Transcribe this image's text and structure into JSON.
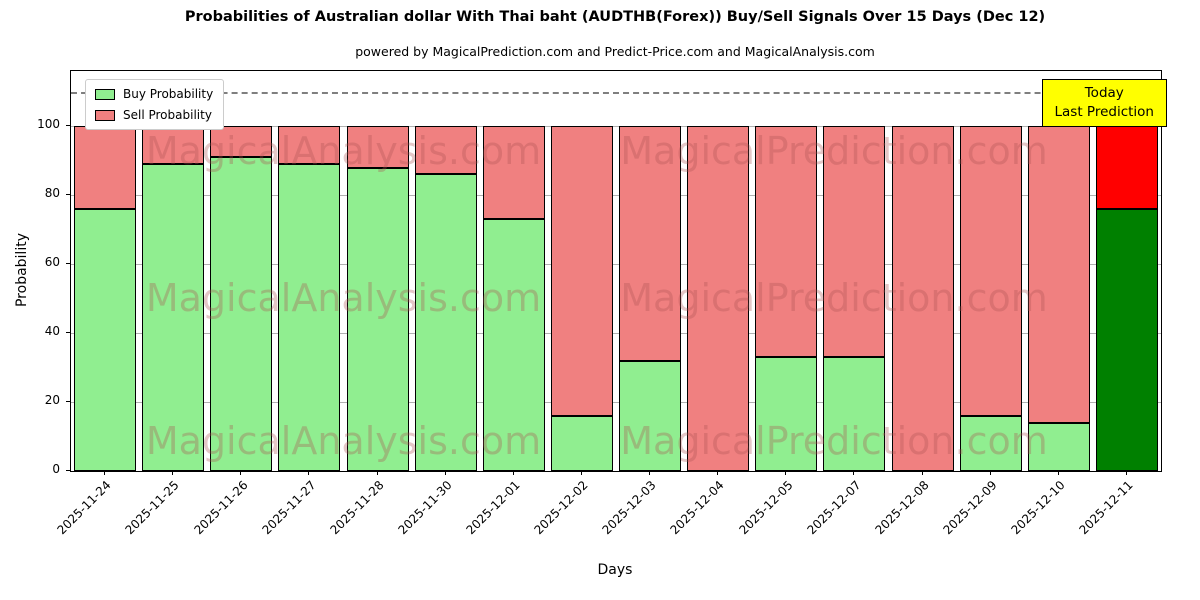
{
  "chart_data": {
    "type": "bar",
    "stacked": true,
    "title": "Probabilities of Australian dollar With Thai baht (AUDTHB(Forex)) Buy/Sell Signals Over 15 Days (Dec 12)",
    "subtitle": "powered by MagicalPrediction.com and Predict-Price.com and MagicalAnalysis.com",
    "xlabel": "Days",
    "ylabel": "Probability",
    "ylim": [
      0,
      116
    ],
    "yticks": [
      0,
      20,
      40,
      60,
      80,
      100
    ],
    "dashed_line_y": 110,
    "grid": true,
    "legend_position": "upper left",
    "categories": [
      "2025-11-24",
      "2025-11-25",
      "2025-11-26",
      "2025-11-27",
      "2025-11-28",
      "2025-11-30",
      "2025-12-01",
      "2025-12-02",
      "2025-12-03",
      "2025-12-04",
      "2025-12-05",
      "2025-12-07",
      "2025-12-08",
      "2025-12-09",
      "2025-12-10",
      "2025-12-11"
    ],
    "series": [
      {
        "name": "Buy Probability",
        "color": "#90ee90",
        "values": [
          76,
          89,
          91,
          89,
          88,
          86,
          73,
          16,
          32,
          0,
          33,
          33,
          0,
          16,
          14,
          76
        ]
      },
      {
        "name": "Sell Probability",
        "color": "#f08080",
        "values": [
          24,
          11,
          9,
          11,
          12,
          14,
          27,
          84,
          68,
          100,
          67,
          67,
          100,
          84,
          86,
          24
        ]
      }
    ],
    "today_index": 15,
    "today_colors": {
      "buy": "#008000",
      "sell": "#ff0000"
    }
  },
  "legend": {
    "items": [
      {
        "label": "Buy Probability",
        "color": "#90ee90"
      },
      {
        "label": "Sell Probability",
        "color": "#f08080"
      }
    ]
  },
  "annotation": {
    "line1": "Today",
    "line2": "Last Prediction",
    "bg": "#ffff00"
  },
  "watermarks": {
    "left": "MagicalAnalysis.com",
    "right": "MagicalPrediction.com"
  }
}
